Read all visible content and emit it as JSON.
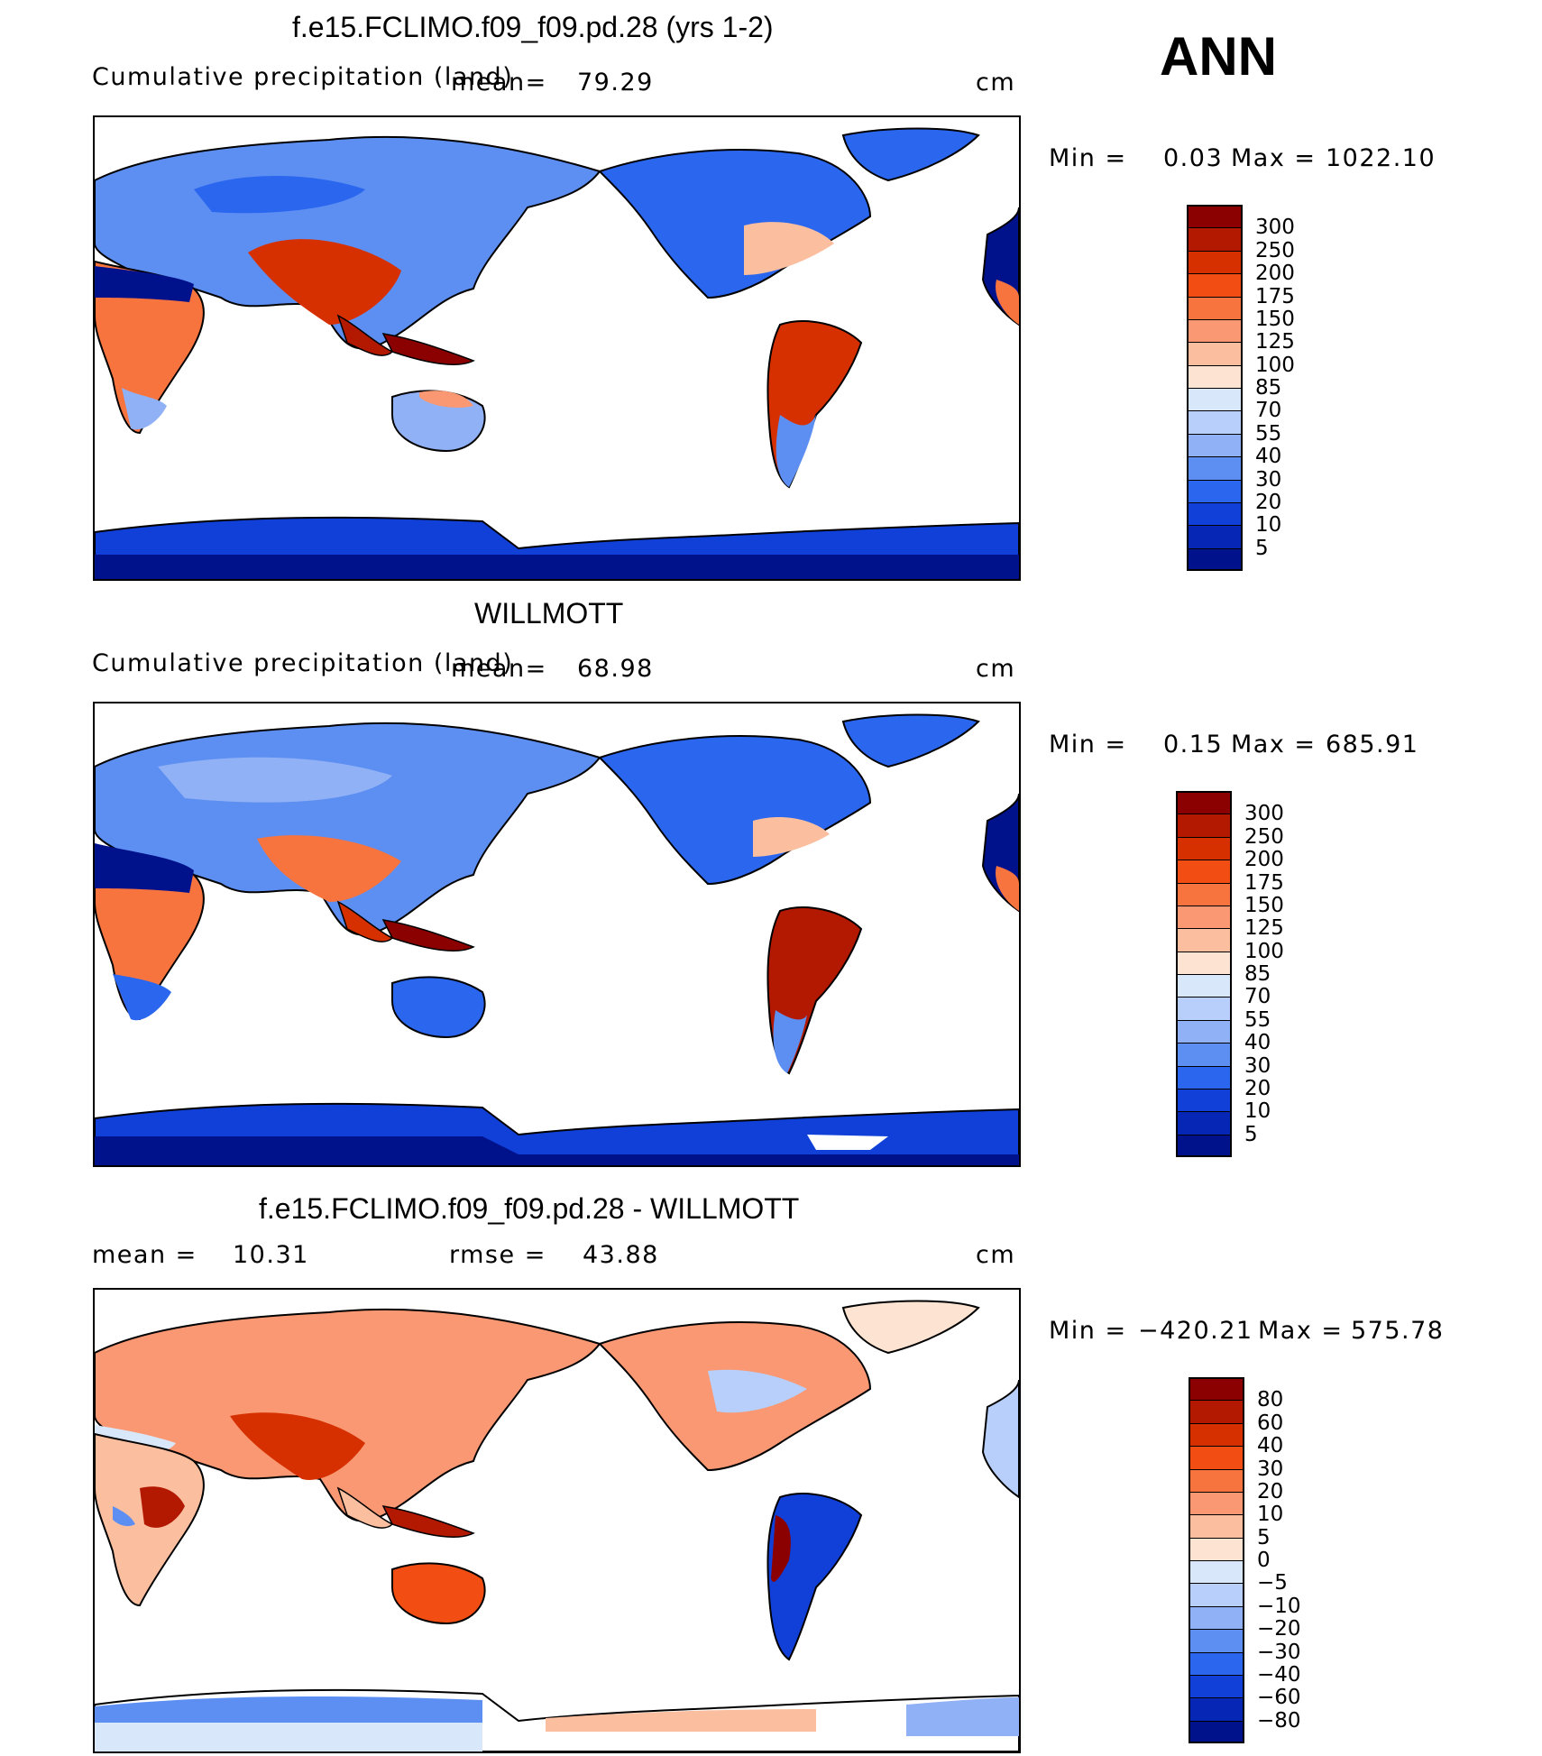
{
  "season": "ANN",
  "panels": [
    {
      "title": "f.e15.FCLIMO.f09_f09.pd.28 (yrs 1-2)",
      "left_text": "Cumulative precipitation (land)",
      "mean_label": "mean=",
      "mean_value": "79.29",
      "units": "cm",
      "min_text": "Min =",
      "min_value": "0.03",
      "max_text": "Max =",
      "max_value": "1022.10",
      "colorbar": {
        "labels": [
          "300",
          "250",
          "200",
          "175",
          "150",
          "125",
          "100",
          "85",
          "70",
          "55",
          "40",
          "30",
          "20",
          "10",
          "5"
        ],
        "colors": [
          "#8b0000",
          "#b31800",
          "#d63000",
          "#f24d12",
          "#f7743f",
          "#f99872",
          "#fbbfa0",
          "#fde3d1",
          "#d9e7fb",
          "#b7cffa",
          "#90b1f5",
          "#5d8ff2",
          "#2b66ef",
          "#1040d8",
          "#0626b5",
          "#00118c"
        ]
      }
    },
    {
      "title": "WILLMOTT",
      "left_text": "Cumulative precipitation (land)",
      "mean_label": "mean=",
      "mean_value": "68.98",
      "units": "cm",
      "min_text": "Min =",
      "min_value": "0.15",
      "max_text": "Max =",
      "max_value": "685.91",
      "colorbar": {
        "labels": [
          "300",
          "250",
          "200",
          "175",
          "150",
          "125",
          "100",
          "85",
          "70",
          "55",
          "40",
          "30",
          "20",
          "10",
          "5"
        ],
        "colors": [
          "#8b0000",
          "#b31800",
          "#d63000",
          "#f24d12",
          "#f7743f",
          "#f99872",
          "#fbbfa0",
          "#fde3d1",
          "#d9e7fb",
          "#b7cffa",
          "#90b1f5",
          "#5d8ff2",
          "#2b66ef",
          "#1040d8",
          "#0626b5",
          "#00118c"
        ]
      }
    },
    {
      "title": "f.e15.FCLIMO.f09_f09.pd.28 - WILLMOTT",
      "mean_label": "mean =",
      "mean_value": "10.31",
      "rmse_label": "rmse =",
      "rmse_value": "43.88",
      "units": "cm",
      "min_text": "Min =",
      "min_value": "−420.21",
      "max_text": "Max =",
      "max_value": "575.78",
      "colorbar": {
        "labels": [
          "80",
          "60",
          "40",
          "30",
          "20",
          "10",
          "5",
          "0",
          "−5",
          "−10",
          "−20",
          "−30",
          "−40",
          "−60",
          "−80"
        ],
        "colors": [
          "#8b0000",
          "#b31800",
          "#d63000",
          "#f24d12",
          "#f7743f",
          "#f99872",
          "#fbbfa0",
          "#fde3d1",
          "#d9e7fb",
          "#b7cffa",
          "#90b1f5",
          "#5d8ff2",
          "#2b66ef",
          "#1040d8",
          "#0626b5",
          "#00118c"
        ]
      }
    }
  ]
}
